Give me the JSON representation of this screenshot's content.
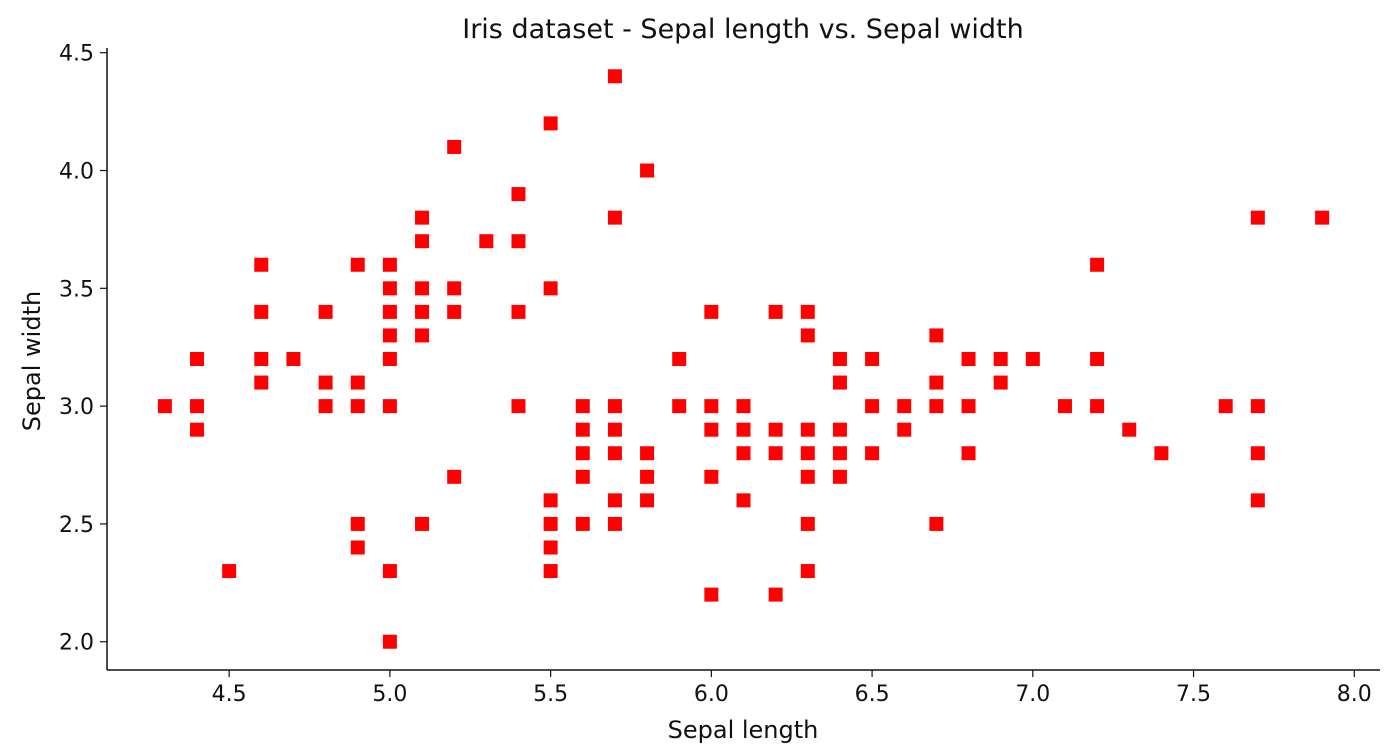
{
  "chart_data": {
    "type": "scatter",
    "title": "Iris dataset - Sepal length vs. Sepal width",
    "xlabel": "Sepal length",
    "ylabel": "Sepal width",
    "xlim": [
      4.12,
      8.08
    ],
    "ylim": [
      1.88,
      4.52
    ],
    "xticks": [
      4.5,
      5.0,
      5.5,
      6.0,
      6.5,
      7.0,
      7.5,
      8.0
    ],
    "xtick_labels": [
      "4.5",
      "5.0",
      "5.5",
      "6.0",
      "6.5",
      "7.0",
      "7.5",
      "8.0"
    ],
    "yticks": [
      2.0,
      2.5,
      3.0,
      3.5,
      4.0,
      4.5
    ],
    "ytick_labels": [
      "2.0",
      "2.5",
      "3.0",
      "3.5",
      "4.0",
      "4.5"
    ],
    "grid": false,
    "marker": "square",
    "color": "#ff0000",
    "points": [
      [
        4.3,
        3.0
      ],
      [
        4.4,
        3.2
      ],
      [
        4.4,
        3.0
      ],
      [
        4.4,
        2.9
      ],
      [
        4.5,
        2.3
      ],
      [
        4.6,
        3.6
      ],
      [
        4.6,
        3.4
      ],
      [
        4.6,
        3.2
      ],
      [
        4.6,
        3.1
      ],
      [
        4.7,
        3.2
      ],
      [
        4.8,
        3.4
      ],
      [
        4.8,
        3.1
      ],
      [
        4.8,
        3.0
      ],
      [
        4.9,
        3.6
      ],
      [
        4.9,
        3.1
      ],
      [
        4.9,
        3.0
      ],
      [
        4.9,
        2.5
      ],
      [
        4.9,
        2.4
      ],
      [
        5.0,
        3.6
      ],
      [
        5.0,
        3.5
      ],
      [
        5.0,
        3.4
      ],
      [
        5.0,
        3.3
      ],
      [
        5.0,
        3.2
      ],
      [
        5.0,
        3.0
      ],
      [
        5.0,
        2.3
      ],
      [
        5.0,
        2.0
      ],
      [
        5.1,
        3.8
      ],
      [
        5.1,
        3.7
      ],
      [
        5.1,
        3.5
      ],
      [
        5.1,
        3.4
      ],
      [
        5.1,
        3.3
      ],
      [
        5.1,
        2.5
      ],
      [
        5.2,
        4.1
      ],
      [
        5.2,
        3.5
      ],
      [
        5.2,
        3.4
      ],
      [
        5.2,
        2.7
      ],
      [
        5.3,
        3.7
      ],
      [
        5.4,
        3.9
      ],
      [
        5.4,
        3.7
      ],
      [
        5.4,
        3.4
      ],
      [
        5.4,
        3.0
      ],
      [
        5.5,
        4.2
      ],
      [
        5.5,
        3.5
      ],
      [
        5.5,
        2.6
      ],
      [
        5.5,
        2.5
      ],
      [
        5.5,
        2.4
      ],
      [
        5.5,
        2.3
      ],
      [
        5.6,
        3.0
      ],
      [
        5.6,
        2.9
      ],
      [
        5.6,
        2.8
      ],
      [
        5.6,
        2.7
      ],
      [
        5.6,
        2.5
      ],
      [
        5.7,
        4.4
      ],
      [
        5.7,
        3.8
      ],
      [
        5.7,
        3.0
      ],
      [
        5.7,
        2.9
      ],
      [
        5.7,
        2.8
      ],
      [
        5.7,
        2.6
      ],
      [
        5.7,
        2.5
      ],
      [
        5.8,
        4.0
      ],
      [
        5.8,
        2.8
      ],
      [
        5.8,
        2.7
      ],
      [
        5.8,
        2.6
      ],
      [
        5.9,
        3.2
      ],
      [
        5.9,
        3.0
      ],
      [
        6.0,
        3.4
      ],
      [
        6.0,
        3.0
      ],
      [
        6.0,
        2.9
      ],
      [
        6.0,
        2.7
      ],
      [
        6.0,
        2.2
      ],
      [
        6.1,
        3.0
      ],
      [
        6.1,
        2.9
      ],
      [
        6.1,
        2.8
      ],
      [
        6.1,
        2.6
      ],
      [
        6.2,
        3.4
      ],
      [
        6.2,
        2.9
      ],
      [
        6.2,
        2.8
      ],
      [
        6.2,
        2.2
      ],
      [
        6.3,
        3.4
      ],
      [
        6.3,
        3.3
      ],
      [
        6.3,
        2.9
      ],
      [
        6.3,
        2.8
      ],
      [
        6.3,
        2.7
      ],
      [
        6.3,
        2.5
      ],
      [
        6.3,
        2.3
      ],
      [
        6.4,
        3.2
      ],
      [
        6.4,
        3.1
      ],
      [
        6.4,
        2.9
      ],
      [
        6.4,
        2.8
      ],
      [
        6.4,
        2.7
      ],
      [
        6.5,
        3.2
      ],
      [
        6.5,
        3.0
      ],
      [
        6.5,
        2.8
      ],
      [
        6.6,
        3.0
      ],
      [
        6.6,
        2.9
      ],
      [
        6.7,
        3.3
      ],
      [
        6.7,
        3.1
      ],
      [
        6.7,
        3.0
      ],
      [
        6.7,
        2.5
      ],
      [
        6.8,
        3.2
      ],
      [
        6.8,
        3.0
      ],
      [
        6.8,
        2.8
      ],
      [
        6.9,
        3.2
      ],
      [
        6.9,
        3.1
      ],
      [
        7.0,
        3.2
      ],
      [
        7.1,
        3.0
      ],
      [
        7.2,
        3.6
      ],
      [
        7.2,
        3.2
      ],
      [
        7.2,
        3.0
      ],
      [
        7.3,
        2.9
      ],
      [
        7.4,
        2.8
      ],
      [
        7.6,
        3.0
      ],
      [
        7.7,
        3.8
      ],
      [
        7.7,
        3.0
      ],
      [
        7.7,
        2.8
      ],
      [
        7.7,
        2.6
      ],
      [
        7.9,
        3.8
      ]
    ]
  }
}
